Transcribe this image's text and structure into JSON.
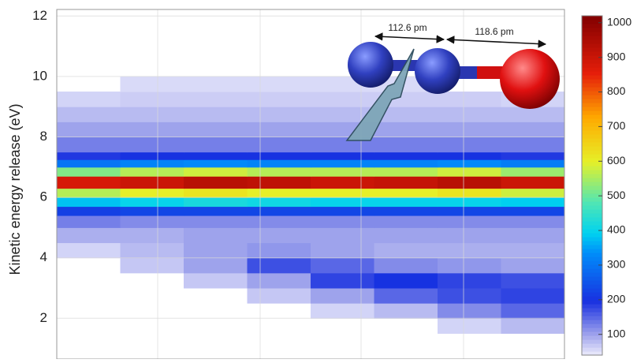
{
  "chart_data": {
    "type": "heatmap",
    "y_label": "Kinetic energy release (eV)",
    "ylim": [
      0.65,
      12
    ],
    "yticks": [
      2,
      4,
      6,
      8,
      10,
      12
    ],
    "grid": true,
    "ybins": [
      1.5,
      2,
      2.5,
      3,
      3.5,
      4,
      4.5,
      5,
      5.4,
      5.7,
      6.0,
      6.3,
      6.7,
      7.0,
      7.25,
      7.5,
      8,
      8.5,
      9,
      9.5,
      10
    ],
    "values": [
      [
        null,
        null,
        null,
        null,
        null,
        null,
        60,
        80
      ],
      [
        null,
        null,
        null,
        null,
        60,
        80,
        120,
        150
      ],
      [
        null,
        null,
        null,
        70,
        100,
        150,
        170,
        180
      ],
      [
        null,
        null,
        70,
        100,
        180,
        200,
        180,
        170
      ],
      [
        null,
        70,
        100,
        170,
        150,
        120,
        110,
        100
      ],
      [
        60,
        80,
        100,
        110,
        100,
        90,
        90,
        90
      ],
      [
        90,
        90,
        100,
        100,
        100,
        100,
        100,
        100
      ],
      [
        130,
        120,
        120,
        120,
        120,
        120,
        120,
        120
      ],
      [
        220,
        230,
        230,
        230,
        230,
        230,
        230,
        230
      ],
      [
        380,
        400,
        420,
        410,
        400,
        400,
        400,
        390
      ],
      [
        560,
        600,
        620,
        600,
        600,
        600,
        620,
        580
      ],
      [
        880,
        900,
        930,
        920,
        900,
        910,
        930,
        900
      ],
      [
        520,
        560,
        580,
        560,
        560,
        560,
        580,
        540
      ],
      [
        300,
        320,
        330,
        320,
        320,
        320,
        330,
        310
      ],
      [
        190,
        200,
        200,
        200,
        200,
        200,
        200,
        190
      ],
      [
        130,
        130,
        130,
        130,
        130,
        130,
        130,
        130
      ],
      [
        100,
        100,
        100,
        100,
        100,
        100,
        100,
        100
      ],
      [
        80,
        80,
        80,
        80,
        80,
        80,
        80,
        80
      ],
      [
        60,
        65,
        65,
        65,
        65,
        65,
        65,
        60
      ],
      [
        null,
        55,
        55,
        55,
        55,
        55,
        null,
        null
      ]
    ],
    "colormap": "jet",
    "clim": [
      40,
      1020
    ],
    "cticks": [
      100,
      200,
      300,
      400,
      500,
      600,
      700,
      800,
      900,
      1000
    ],
    "annotations": [
      "112.6 pm",
      "118.6 pm"
    ]
  }
}
